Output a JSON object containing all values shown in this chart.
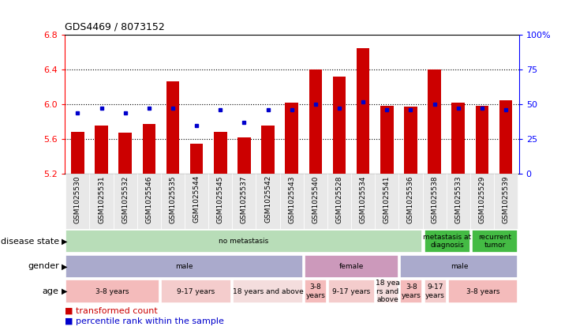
{
  "title": "GDS4469 / 8073152",
  "samples": [
    "GSM1025530",
    "GSM1025531",
    "GSM1025532",
    "GSM1025546",
    "GSM1025535",
    "GSM1025544",
    "GSM1025545",
    "GSM1025537",
    "GSM1025542",
    "GSM1025543",
    "GSM1025540",
    "GSM1025528",
    "GSM1025534",
    "GSM1025541",
    "GSM1025536",
    "GSM1025538",
    "GSM1025533",
    "GSM1025529",
    "GSM1025539"
  ],
  "transformed_count": [
    5.68,
    5.76,
    5.67,
    5.77,
    6.27,
    5.55,
    5.68,
    5.62,
    5.76,
    6.02,
    6.4,
    6.32,
    6.65,
    5.98,
    5.97,
    6.4,
    6.02,
    5.98,
    6.05
  ],
  "percentile_rank": [
    44,
    47,
    44,
    47,
    47,
    35,
    46,
    37,
    46,
    46,
    50,
    47,
    52,
    46,
    46,
    50,
    47,
    47,
    46
  ],
  "ymin": 5.2,
  "ymax": 6.8,
  "yticks": [
    5.2,
    5.6,
    6.0,
    6.4,
    6.8
  ],
  "ytick_labels": [
    "5.2",
    "5.6",
    "6.0",
    "6.4",
    "6.8"
  ],
  "right_yticks": [
    0,
    25,
    50,
    75,
    100
  ],
  "right_ytick_labels": [
    "0",
    "25",
    "50",
    "75",
    "100%"
  ],
  "bar_color": "#cc0000",
  "dot_color": "#0000cc",
  "metadata_rows": [
    {
      "label": "disease state",
      "segments": [
        {
          "text": "no metastasis",
          "start": 0,
          "end": 15,
          "color": "#b8ddb8",
          "text_color": "#000000"
        },
        {
          "text": "metastasis at\ndiagnosis",
          "start": 15,
          "end": 17,
          "color": "#44bb44",
          "text_color": "#000000"
        },
        {
          "text": "recurrent\ntumor",
          "start": 17,
          "end": 19,
          "color": "#44bb44",
          "text_color": "#000000"
        }
      ]
    },
    {
      "label": "gender",
      "segments": [
        {
          "text": "male",
          "start": 0,
          "end": 10,
          "color": "#aaaacc",
          "text_color": "#000000"
        },
        {
          "text": "female",
          "start": 10,
          "end": 14,
          "color": "#cc99bb",
          "text_color": "#000000"
        },
        {
          "text": "male",
          "start": 14,
          "end": 19,
          "color": "#aaaacc",
          "text_color": "#000000"
        }
      ]
    },
    {
      "label": "age",
      "segments": [
        {
          "text": "3-8 years",
          "start": 0,
          "end": 4,
          "color": "#f4bbbb",
          "text_color": "#000000"
        },
        {
          "text": "9-17 years",
          "start": 4,
          "end": 7,
          "color": "#f4cccc",
          "text_color": "#000000"
        },
        {
          "text": "18 years and above",
          "start": 7,
          "end": 10,
          "color": "#f4dddd",
          "text_color": "#000000"
        },
        {
          "text": "3-8\nyears",
          "start": 10,
          "end": 11,
          "color": "#f4bbbb",
          "text_color": "#000000"
        },
        {
          "text": "9-17 years",
          "start": 11,
          "end": 13,
          "color": "#f4cccc",
          "text_color": "#000000"
        },
        {
          "text": "18 yea\nrs and\nabove",
          "start": 13,
          "end": 14,
          "color": "#f4dddd",
          "text_color": "#000000"
        },
        {
          "text": "3-8\nyears",
          "start": 14,
          "end": 15,
          "color": "#f4bbbb",
          "text_color": "#000000"
        },
        {
          "text": "9-17\nyears",
          "start": 15,
          "end": 16,
          "color": "#f4cccc",
          "text_color": "#000000"
        },
        {
          "text": "3-8 years",
          "start": 16,
          "end": 19,
          "color": "#f4bbbb",
          "text_color": "#000000"
        }
      ]
    }
  ]
}
